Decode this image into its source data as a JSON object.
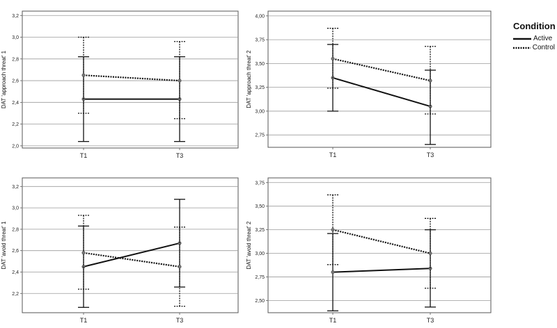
{
  "legend": {
    "title": "Condition",
    "items": [
      {
        "label": "Active",
        "style": "solid"
      },
      {
        "label": "Control",
        "style": "dotted"
      }
    ]
  },
  "chart_data": [
    {
      "type": "line",
      "ylabel": "DAT 'approach threat' 1",
      "categories": [
        "T1",
        "T3"
      ],
      "ylim": [
        1.98,
        3.24
      ],
      "yticks": [
        "2,0",
        "2,2",
        "2,4",
        "2,6",
        "2,8",
        "3,0",
        "3,2"
      ],
      "ytick_values": [
        2.0,
        2.2,
        2.4,
        2.6,
        2.8,
        3.0,
        3.2
      ],
      "grid": true,
      "series": [
        {
          "name": "Active",
          "style": "solid",
          "values": [
            2.43,
            2.43
          ],
          "ci_low": [
            2.04,
            2.04
          ],
          "ci_high": [
            2.82,
            2.82
          ]
        },
        {
          "name": "Control",
          "style": "dotted",
          "values": [
            2.65,
            2.6
          ],
          "ci_low": [
            2.3,
            2.25
          ],
          "ci_high": [
            3.0,
            2.96
          ]
        }
      ]
    },
    {
      "type": "line",
      "ylabel": "DAT 'approach threat' 2",
      "categories": [
        "T1",
        "T3"
      ],
      "ylim": [
        2.62,
        4.05
      ],
      "yticks": [
        "2,75",
        "3,00",
        "3,25",
        "3,50",
        "3,75",
        "4,00"
      ],
      "ytick_values": [
        2.75,
        3.0,
        3.25,
        3.5,
        3.75,
        4.0
      ],
      "grid": true,
      "series": [
        {
          "name": "Active",
          "style": "solid",
          "values": [
            3.35,
            3.05
          ],
          "ci_low": [
            3.0,
            2.65
          ],
          "ci_high": [
            3.7,
            3.43
          ]
        },
        {
          "name": "Control",
          "style": "dotted",
          "values": [
            3.55,
            3.32
          ],
          "ci_low": [
            3.24,
            2.97
          ],
          "ci_high": [
            3.87,
            3.68
          ]
        }
      ]
    },
    {
      "type": "line",
      "ylabel": "DAT 'avoid threat' 1",
      "categories": [
        "T1",
        "T3"
      ],
      "ylim": [
        2.02,
        3.28
      ],
      "yticks": [
        "2,2",
        "2,4",
        "2,6",
        "2,8",
        "3,0",
        "3,2"
      ],
      "ytick_values": [
        2.2,
        2.4,
        2.6,
        2.8,
        3.0,
        3.2
      ],
      "grid": true,
      "series": [
        {
          "name": "Active",
          "style": "solid",
          "values": [
            2.45,
            2.67
          ],
          "ci_low": [
            2.07,
            2.26
          ],
          "ci_high": [
            2.83,
            3.08
          ]
        },
        {
          "name": "Control",
          "style": "dotted",
          "values": [
            2.58,
            2.45
          ],
          "ci_low": [
            2.24,
            2.08
          ],
          "ci_high": [
            2.93,
            2.82
          ]
        }
      ]
    },
    {
      "type": "line",
      "ylabel": "DAT 'avoid threat' 2",
      "categories": [
        "T1",
        "T3"
      ],
      "ylim": [
        2.37,
        3.8
      ],
      "yticks": [
        "2,50",
        "2,75",
        "3,00",
        "3,25",
        "3,50",
        "3,75"
      ],
      "ytick_values": [
        2.5,
        2.75,
        3.0,
        3.25,
        3.5,
        3.75
      ],
      "grid": true,
      "series": [
        {
          "name": "Active",
          "style": "solid",
          "values": [
            2.8,
            2.84
          ],
          "ci_low": [
            2.39,
            2.43
          ],
          "ci_high": [
            3.21,
            3.25
          ]
        },
        {
          "name": "Control",
          "style": "dotted",
          "values": [
            3.25,
            3.0
          ],
          "ci_low": [
            2.88,
            2.63
          ],
          "ci_high": [
            3.62,
            3.37
          ]
        }
      ]
    }
  ]
}
